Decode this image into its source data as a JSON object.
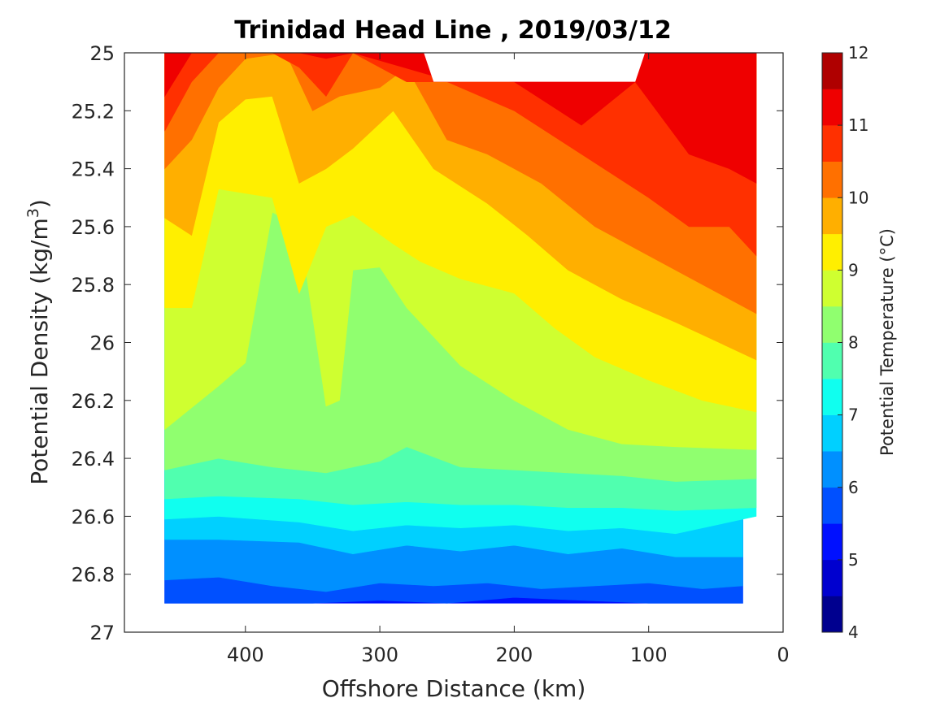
{
  "chart_data": {
    "type": "heatmap",
    "subtype": "filled-contour",
    "title": "Trinidad Head Line , 2019/03/12",
    "xlabel": "Offshore Distance (km)",
    "ylabel": "Potential Density (kg/m",
    "ylabel_sup": "3",
    "ylabel_close": ")",
    "xlim": [
      490,
      0
    ],
    "ylim": [
      25,
      27
    ],
    "x_reversed": true,
    "y_reversed": true,
    "xticks": [
      400,
      300,
      200,
      100,
      0
    ],
    "xtick_labels": [
      "400",
      "300",
      "200",
      "100",
      "0"
    ],
    "yticks": [
      25,
      25.2,
      25.4,
      25.6,
      25.8,
      26,
      26.2,
      26.4,
      26.6,
      26.8,
      27
    ],
    "ytick_labels": [
      "25",
      "25.2",
      "25.4",
      "25.6",
      "25.8",
      "26",
      "26.2",
      "26.4",
      "26.6",
      "26.8",
      "27"
    ],
    "colorbar": {
      "label": "Potential Temperature (°C)",
      "min": 4,
      "max": 12,
      "step": 0.5,
      "tick_values": [
        4,
        5,
        6,
        7,
        8,
        9,
        10,
        11,
        12
      ],
      "tick_labels": [
        "4",
        "5",
        "6",
        "7",
        "8",
        "9",
        "10",
        "11",
        "12"
      ],
      "colors": [
        "#00008f",
        "#0000cf",
        "#0010ff",
        "#0050ff",
        "#0090ff",
        "#00d0ff",
        "#10ffef",
        "#50ffaf",
        "#90ff6f",
        "#cfff30",
        "#ffef00",
        "#ffaf00",
        "#ff7000",
        "#ff3000",
        "#ef0000",
        "#af0000"
      ]
    },
    "contour_levels": [
      {
        "level": 5.0,
        "x": [
          460,
          30
        ],
        "density": [
          26.9,
          26.9
        ]
      },
      {
        "level": 5.5,
        "x": [
          460,
          400,
          350,
          300,
          250,
          200,
          150,
          100,
          50,
          30
        ],
        "density": [
          26.9,
          26.9,
          26.9,
          26.89,
          26.9,
          26.88,
          26.89,
          26.9,
          26.9,
          26.9
        ]
      },
      {
        "level": 6.0,
        "x": [
          460,
          420,
          380,
          340,
          300,
          260,
          220,
          180,
          140,
          100,
          60,
          30
        ],
        "density": [
          26.82,
          26.81,
          26.84,
          26.86,
          26.83,
          26.84,
          26.83,
          26.85,
          26.84,
          26.83,
          26.85,
          26.84
        ]
      },
      {
        "level": 6.5,
        "x": [
          460,
          420,
          360,
          320,
          280,
          240,
          200,
          160,
          120,
          80,
          30
        ],
        "density": [
          26.68,
          26.68,
          26.69,
          26.73,
          26.7,
          26.72,
          26.7,
          26.73,
          26.71,
          26.74,
          26.74
        ]
      },
      {
        "level": 7.0,
        "x": [
          460,
          420,
          360,
          320,
          280,
          240,
          200,
          160,
          120,
          80,
          20
        ],
        "density": [
          26.61,
          26.6,
          26.62,
          26.65,
          26.63,
          26.64,
          26.63,
          26.65,
          26.64,
          26.66,
          26.6
        ]
      },
      {
        "level": 7.5,
        "x": [
          460,
          420,
          360,
          320,
          280,
          240,
          200,
          160,
          120,
          80,
          20
        ],
        "density": [
          26.54,
          26.53,
          26.54,
          26.56,
          26.55,
          26.56,
          26.56,
          26.57,
          26.57,
          26.58,
          26.57
        ]
      },
      {
        "level": 8.0,
        "x": [
          460,
          420,
          380,
          340,
          300,
          280,
          240,
          200,
          160,
          120,
          80,
          20
        ],
        "density": [
          26.44,
          26.4,
          26.43,
          26.45,
          26.41,
          26.36,
          26.43,
          26.44,
          26.45,
          26.46,
          26.48,
          26.47
        ]
      },
      {
        "level": 8.5,
        "x": [
          460,
          420,
          400,
          380,
          360,
          340,
          330,
          320,
          300,
          280,
          240,
          200,
          160,
          120,
          80,
          20
        ],
        "density": [
          26.3,
          26.15,
          26.07,
          25.55,
          25.6,
          26.22,
          26.2,
          25.75,
          25.74,
          25.88,
          26.08,
          26.2,
          26.3,
          26.35,
          26.36,
          26.37
        ]
      },
      {
        "level": 9.0,
        "x": [
          460,
          440,
          420,
          380,
          360,
          340,
          320,
          290,
          270,
          240,
          200,
          170,
          140,
          100,
          60,
          20
        ],
        "density": [
          25.88,
          25.88,
          25.47,
          25.5,
          25.83,
          25.6,
          25.56,
          25.66,
          25.72,
          25.78,
          25.83,
          25.95,
          26.05,
          26.13,
          26.2,
          26.24
        ]
      },
      {
        "level": 9.5,
        "x": [
          460,
          440,
          420,
          400,
          380,
          360,
          340,
          320,
          290,
          260,
          220,
          190,
          160,
          120,
          80,
          20
        ],
        "density": [
          25.57,
          25.63,
          25.24,
          25.16,
          25.15,
          25.45,
          25.4,
          25.33,
          25.2,
          25.4,
          25.52,
          25.63,
          25.75,
          25.85,
          25.93,
          26.06
        ]
      },
      {
        "level": 10.0,
        "x": [
          460,
          440,
          420,
          400,
          370,
          350,
          330,
          300,
          280,
          250,
          220,
          180,
          140,
          100,
          60,
          20
        ],
        "density": [
          25.4,
          25.3,
          25.12,
          25.02,
          25.0,
          25.2,
          25.15,
          25.12,
          25.05,
          25.3,
          25.35,
          25.45,
          25.6,
          25.7,
          25.8,
          25.9
        ]
      },
      {
        "level": 10.5,
        "x": [
          460,
          440,
          420,
          400,
          380,
          360,
          340,
          320,
          300,
          280,
          250,
          200,
          150,
          100,
          70,
          40,
          20
        ],
        "density": [
          25.27,
          25.1,
          25.0,
          25.0,
          25.0,
          25.05,
          25.15,
          25.0,
          25.05,
          25.1,
          25.1,
          25.2,
          25.35,
          25.5,
          25.6,
          25.6,
          25.7
        ]
      },
      {
        "level": 11.0,
        "x": [
          460,
          440,
          420,
          360,
          340,
          320,
          260,
          200,
          150,
          110,
          70,
          40,
          20
        ],
        "density": [
          25.15,
          25.0,
          25.0,
          25.0,
          25.02,
          25.0,
          25.08,
          25.1,
          25.25,
          25.1,
          25.35,
          25.4,
          25.45
        ]
      }
    ],
    "masked_region": {
      "x": [
        260,
        110
      ],
      "density": [
        25.0,
        25.1
      ]
    }
  }
}
